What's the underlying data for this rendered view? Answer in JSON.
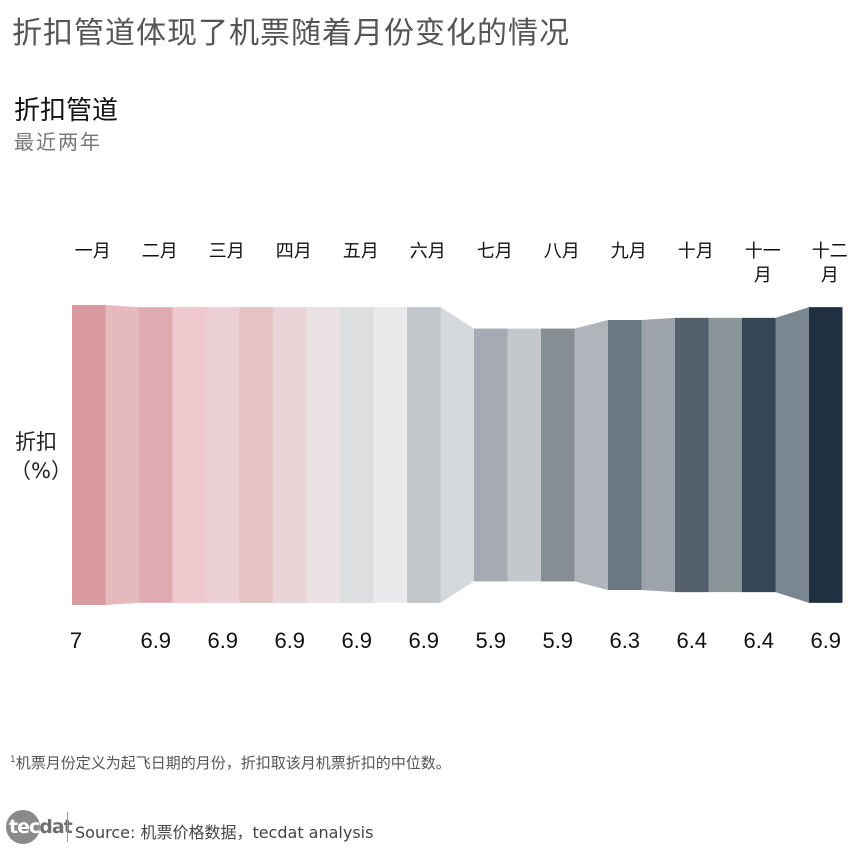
{
  "header": {
    "main_title": "折扣管道体现了机票随着月份变化的情况"
  },
  "chart_data": {
    "type": "bar",
    "title": "折扣管道",
    "subtitle": "最近两年",
    "ylabel": "折扣\n（%）",
    "categories": [
      "一月",
      "二月",
      "三月",
      "四月",
      "五月",
      "六月",
      "七月",
      "八月",
      "九月",
      "十月",
      "十一月",
      "十二月"
    ],
    "category_lines": [
      [
        "一月"
      ],
      [
        "二月"
      ],
      [
        "三月"
      ],
      [
        "四月"
      ],
      [
        "五月"
      ],
      [
        "六月"
      ],
      [
        "七月"
      ],
      [
        "八月"
      ],
      [
        "九月"
      ],
      [
        "十月"
      ],
      [
        "十一",
        "月"
      ],
      [
        "十二",
        "月"
      ]
    ],
    "values": [
      7,
      6.9,
      6.9,
      6.9,
      6.9,
      6.9,
      5.9,
      5.9,
      6.3,
      6.4,
      6.4,
      6.9
    ],
    "value_labels": [
      "7",
      "6.9",
      "6.9",
      "6.9",
      "6.9",
      "6.9",
      "5.9",
      "5.9",
      "6.3",
      "6.4",
      "6.4",
      "6.9"
    ],
    "colors": [
      "#d99aa0",
      "#e0abb0",
      "#ebcfd2",
      "#e9d5d7",
      "#dcdee0",
      "#c0c6c9",
      "#a6abb3",
      "#868d95",
      "#6b7781",
      "#535f6b",
      "#354654",
      "#1f3140"
    ],
    "connector_colors": [
      "#e6b9bd",
      "#efc9cd",
      "#e6c2c5",
      "#ece1e3",
      "#e9eaec",
      "#d6d9dc",
      "#c4c7cb",
      "#b0b4bb",
      "#9ca3ab",
      "#8a9599",
      "#7a8690"
    ]
  },
  "footnote": {
    "marker": "1",
    "text": "机票月份定义为起飞日期的月份，折扣取该月机票折扣的中位数。"
  },
  "source": {
    "logo_prefix": "tec",
    "logo_rest": "dat",
    "label": "Source:",
    "text": "机票价格数据，tecdat analysis"
  }
}
